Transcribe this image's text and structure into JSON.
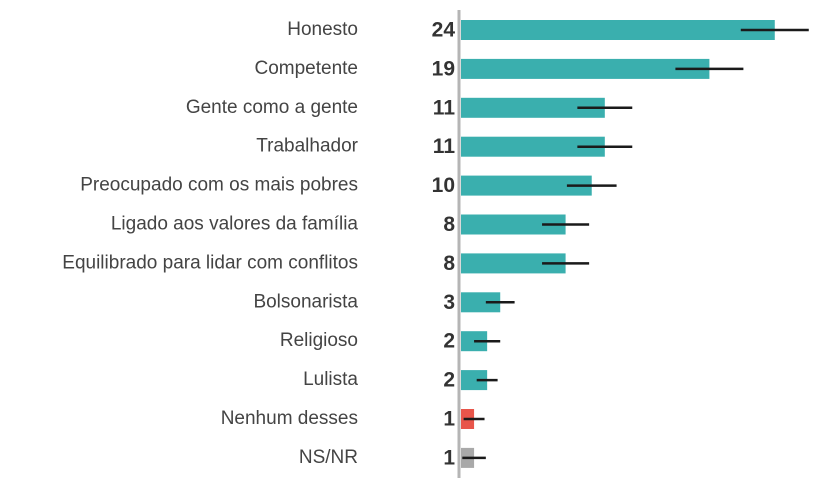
{
  "chart_data": {
    "type": "bar",
    "orientation": "horizontal",
    "categories": [
      "Honesto",
      "Competente",
      "Gente como a gente",
      "Trabalhador",
      "Preocupado com os mais pobres",
      "Ligado aos valores da família",
      "Equilibrado para lidar com conflitos",
      "Bolsonarista",
      "Religioso",
      "Lulista",
      "Nenhum desses",
      "NS/NR"
    ],
    "values": [
      24,
      19,
      11,
      11,
      10,
      8,
      8,
      3,
      2,
      2,
      1,
      1
    ],
    "errors": [
      2.6,
      2.6,
      2.1,
      2.1,
      1.9,
      1.8,
      1.8,
      1.1,
      1.0,
      0.8,
      0.8,
      0.9
    ],
    "colors": [
      "#3aafae",
      "#3aafae",
      "#3aafae",
      "#3aafae",
      "#3aafae",
      "#3aafae",
      "#3aafae",
      "#3aafae",
      "#3aafae",
      "#3aafae",
      "#e8554a",
      "#a9a9a9"
    ],
    "error_color": "#1a1a1a",
    "axis_color": "#b5b5b5",
    "xlim": [
      0,
      27
    ]
  }
}
